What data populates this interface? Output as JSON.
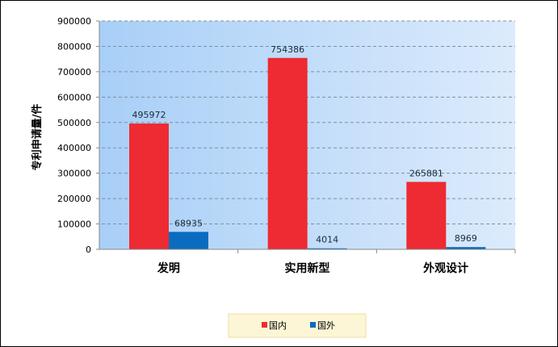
{
  "chart_data": {
    "type": "bar",
    "title": "",
    "xlabel": "",
    "ylabel": "专利申请量/件",
    "categories": [
      "发明",
      "实用新型",
      "外观设计"
    ],
    "series": [
      {
        "name": "国内",
        "values": [
          495972,
          754386,
          265881
        ],
        "color": "#ee2a33"
      },
      {
        "name": "国外",
        "values": [
          68935,
          4014,
          8969
        ],
        "color": "#0a6cc0"
      }
    ],
    "ylim": [
      0,
      900000
    ],
    "yticks": [
      "0",
      "100000",
      "200000",
      "300000",
      "400000",
      "500000",
      "600000",
      "700000",
      "800000",
      "900000"
    ],
    "grid": true,
    "legend_position": "bottom",
    "data_labels": true,
    "background_gradient": [
      "#a8cff7",
      "#dcebfc"
    ]
  }
}
